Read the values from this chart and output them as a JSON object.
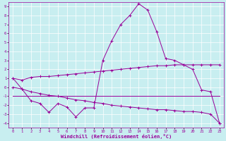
{
  "xlabel": "Windchill (Refroidissement éolien,°C)",
  "background_color": "#c8eef0",
  "line_color": "#990099",
  "xlim": [
    -0.5,
    23.5
  ],
  "ylim": [
    -4.5,
    9.5
  ],
  "xticks": [
    0,
    1,
    2,
    3,
    4,
    5,
    6,
    7,
    8,
    9,
    10,
    11,
    12,
    13,
    14,
    15,
    16,
    17,
    18,
    19,
    20,
    21,
    22,
    23
  ],
  "yticks": [
    -4,
    -3,
    -2,
    -1,
    0,
    1,
    2,
    3,
    4,
    5,
    6,
    7,
    8,
    9
  ],
  "series1_x": [
    0,
    1,
    2,
    3,
    4,
    5,
    6,
    7,
    8,
    9,
    10,
    11,
    12,
    13,
    14,
    15,
    16,
    17,
    18,
    19,
    20,
    21,
    22,
    23
  ],
  "series1_y": [
    1.0,
    0.8,
    1.1,
    1.2,
    1.2,
    1.3,
    1.4,
    1.5,
    1.6,
    1.7,
    1.8,
    1.9,
    2.0,
    2.1,
    2.2,
    2.3,
    2.4,
    2.4,
    2.5,
    2.5,
    2.5,
    2.5,
    2.5,
    2.5
  ],
  "series2_x": [
    0,
    1,
    2,
    3,
    4,
    5,
    6,
    7,
    8,
    9,
    10,
    11,
    12,
    13,
    14,
    15,
    16,
    17,
    18,
    19,
    20,
    21,
    22,
    23
  ],
  "series2_y": [
    -1.0,
    -1.0,
    -1.0,
    -1.0,
    -1.0,
    -1.0,
    -1.0,
    -1.0,
    -1.0,
    -1.0,
    -1.0,
    -1.0,
    -1.0,
    -1.0,
    -1.0,
    -1.0,
    -1.0,
    -1.0,
    -1.0,
    -1.0,
    -1.0,
    -1.0,
    -1.0,
    -1.0
  ],
  "series3_x": [
    0,
    1,
    2,
    3,
    4,
    5,
    6,
    7,
    8,
    9,
    10,
    11,
    12,
    13,
    14,
    15,
    16,
    17,
    18,
    19,
    20,
    21,
    22,
    23
  ],
  "series3_y": [
    1.0,
    -0.2,
    -1.5,
    -1.8,
    -2.8,
    -1.8,
    -2.2,
    -3.3,
    -2.3,
    -2.3,
    3.0,
    5.2,
    7.0,
    8.0,
    9.3,
    8.6,
    6.2,
    3.2,
    3.0,
    2.5,
    2.0,
    -0.3,
    -0.5,
    -4.0
  ],
  "series4_x": [
    0,
    1,
    2,
    3,
    4,
    5,
    6,
    7,
    8,
    9,
    10,
    11,
    12,
    13,
    14,
    15,
    16,
    17,
    18,
    19,
    20,
    21,
    22,
    23
  ],
  "series4_y": [
    0.0,
    -0.2,
    -0.5,
    -0.7,
    -0.9,
    -1.0,
    -1.2,
    -1.4,
    -1.5,
    -1.7,
    -1.8,
    -2.0,
    -2.1,
    -2.2,
    -2.3,
    -2.4,
    -2.5,
    -2.5,
    -2.6,
    -2.7,
    -2.7,
    -2.8,
    -3.0,
    -4.0
  ]
}
